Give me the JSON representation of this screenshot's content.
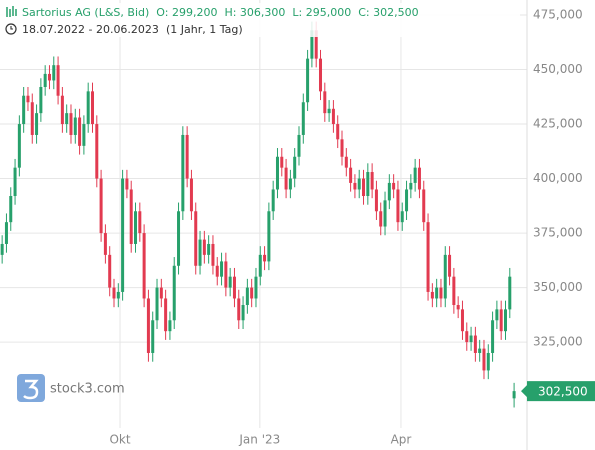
{
  "chart_data": {
    "type": "candlestick",
    "title": "Sartorius AG (L&S, Bid)",
    "header_values": [
      "O: 299,200",
      "H: 306,300",
      "L: 295,000",
      "C: 302,500"
    ],
    "period": "18.07.2022 - 20.06.2023",
    "interval": "(1 Jahr, 1 Tag)",
    "watermark": "stock3.com",
    "last_label": "302,500",
    "up_color": "#27a06b",
    "down_color": "#e23a50",
    "grid": true,
    "xlim": [
      -0.5,
      122
    ],
    "xticks": [
      {
        "value": 27.4,
        "label": "Okt"
      },
      {
        "value": 59.9,
        "label": "Jan '23"
      },
      {
        "value": 92.7,
        "label": "Apr"
      }
    ],
    "ylim": [
      275500,
      481900
    ],
    "yticks": [
      {
        "value": 325000,
        "label": "325,000"
      },
      {
        "value": 350000,
        "label": "350,000"
      },
      {
        "value": 375000,
        "label": "375,000"
      },
      {
        "value": 400000,
        "label": "400,000"
      },
      {
        "value": 425000,
        "label": "425,000"
      },
      {
        "value": 450000,
        "label": "450,000"
      },
      {
        "value": 475000,
        "label": "475,000"
      }
    ],
    "open": [
      365000,
      370000,
      380000,
      392000,
      405000,
      425000,
      438000,
      435000,
      420000,
      430000,
      442000,
      448000,
      445000,
      452000,
      438000,
      425000,
      430000,
      420000,
      428000,
      415000,
      425000,
      440000,
      425000,
      400000,
      375000,
      365000,
      350000,
      345000,
      348000,
      400000,
      395000,
      370000,
      385000,
      375000,
      345000,
      320000,
      335000,
      350000,
      345000,
      330000,
      335000,
      360000,
      385000,
      420000,
      400000,
      385000,
      360000,
      372000,
      365000,
      370000,
      360000,
      355000,
      362000,
      350000,
      355000,
      345000,
      335000,
      342000,
      350000,
      345000,
      355000,
      365000,
      362000,
      385000,
      395000,
      410000,
      405000,
      395000,
      400000,
      410000,
      420000,
      435000,
      455000,
      468000,
      455000,
      440000,
      430000,
      432000,
      425000,
      418000,
      410000,
      405000,
      398000,
      395000,
      400000,
      392000,
      403000,
      395000,
      385000,
      378000,
      390000,
      398000,
      395000,
      380000,
      385000,
      395000,
      398000,
      405000,
      395000,
      380000,
      348000,
      345000,
      350000,
      345000,
      365000,
      355000,
      342000,
      340000,
      330000,
      325000,
      328000,
      320000,
      322000,
      312000,
      320000,
      335000,
      340000,
      330000,
      340000,
      299200
    ],
    "high": [
      374000,
      384000,
      396000,
      409000,
      429000,
      442000,
      442000,
      439000,
      434000,
      446000,
      452000,
      452000,
      456000,
      456000,
      442000,
      434000,
      434000,
      432000,
      432000,
      429000,
      444000,
      444000,
      429000,
      404000,
      379000,
      369000,
      354000,
      352000,
      404000,
      404000,
      399000,
      389000,
      389000,
      379000,
      349000,
      339000,
      354000,
      354000,
      349000,
      339000,
      364000,
      389000,
      424000,
      424000,
      404000,
      389000,
      376000,
      376000,
      374000,
      374000,
      364000,
      366000,
      366000,
      359000,
      359000,
      349000,
      346000,
      354000,
      354000,
      359000,
      369000,
      369000,
      389000,
      399000,
      414000,
      414000,
      409000,
      404000,
      414000,
      424000,
      439000,
      459000,
      472000,
      472000,
      459000,
      444000,
      436000,
      436000,
      429000,
      422000,
      414000,
      409000,
      402000,
      404000,
      404000,
      407000,
      407000,
      399000,
      389000,
      394000,
      402000,
      402000,
      399000,
      389000,
      399000,
      402000,
      409000,
      409000,
      399000,
      384000,
      352000,
      354000,
      354000,
      369000,
      369000,
      359000,
      346000,
      344000,
      334000,
      332000,
      332000,
      326000,
      326000,
      324000,
      339000,
      344000,
      344000,
      344000,
      359000,
      306300
    ],
    "low": [
      361000,
      366000,
      376000,
      388000,
      401000,
      421000,
      431000,
      416000,
      416000,
      426000,
      438000,
      441000,
      441000,
      434000,
      421000,
      421000,
      416000,
      416000,
      411000,
      411000,
      421000,
      421000,
      396000,
      371000,
      361000,
      346000,
      341000,
      341000,
      344000,
      391000,
      366000,
      366000,
      371000,
      341000,
      316000,
      316000,
      331000,
      341000,
      326000,
      326000,
      331000,
      356000,
      381000,
      396000,
      381000,
      356000,
      356000,
      361000,
      361000,
      356000,
      351000,
      351000,
      346000,
      346000,
      341000,
      331000,
      331000,
      338000,
      341000,
      341000,
      351000,
      358000,
      358000,
      381000,
      391000,
      401000,
      391000,
      391000,
      396000,
      406000,
      416000,
      431000,
      451000,
      451000,
      436000,
      426000,
      426000,
      421000,
      414000,
      406000,
      401000,
      394000,
      391000,
      391000,
      388000,
      388000,
      391000,
      381000,
      374000,
      374000,
      386000,
      391000,
      376000,
      376000,
      381000,
      391000,
      394000,
      391000,
      376000,
      344000,
      341000,
      341000,
      341000,
      341000,
      351000,
      338000,
      336000,
      326000,
      321000,
      321000,
      316000,
      316000,
      308000,
      308000,
      316000,
      331000,
      326000,
      326000,
      336000,
      295000
    ],
    "close": [
      370000,
      380000,
      392000,
      405000,
      425000,
      438000,
      435000,
      420000,
      430000,
      442000,
      448000,
      445000,
      452000,
      438000,
      425000,
      430000,
      420000,
      428000,
      415000,
      425000,
      440000,
      425000,
      400000,
      375000,
      365000,
      350000,
      345000,
      348000,
      400000,
      395000,
      370000,
      385000,
      375000,
      345000,
      320000,
      335000,
      350000,
      345000,
      330000,
      335000,
      360000,
      385000,
      420000,
      400000,
      385000,
      360000,
      372000,
      365000,
      370000,
      360000,
      355000,
      362000,
      350000,
      355000,
      345000,
      335000,
      342000,
      350000,
      345000,
      355000,
      365000,
      362000,
      385000,
      395000,
      410000,
      405000,
      395000,
      400000,
      410000,
      420000,
      435000,
      455000,
      468000,
      455000,
      440000,
      430000,
      432000,
      425000,
      418000,
      410000,
      405000,
      398000,
      395000,
      400000,
      392000,
      403000,
      395000,
      385000,
      378000,
      390000,
      398000,
      395000,
      380000,
      385000,
      395000,
      398000,
      405000,
      395000,
      380000,
      348000,
      345000,
      350000,
      345000,
      365000,
      355000,
      342000,
      340000,
      330000,
      325000,
      328000,
      320000,
      322000,
      312000,
      320000,
      335000,
      340000,
      330000,
      340000,
      355000,
      302500
    ]
  }
}
